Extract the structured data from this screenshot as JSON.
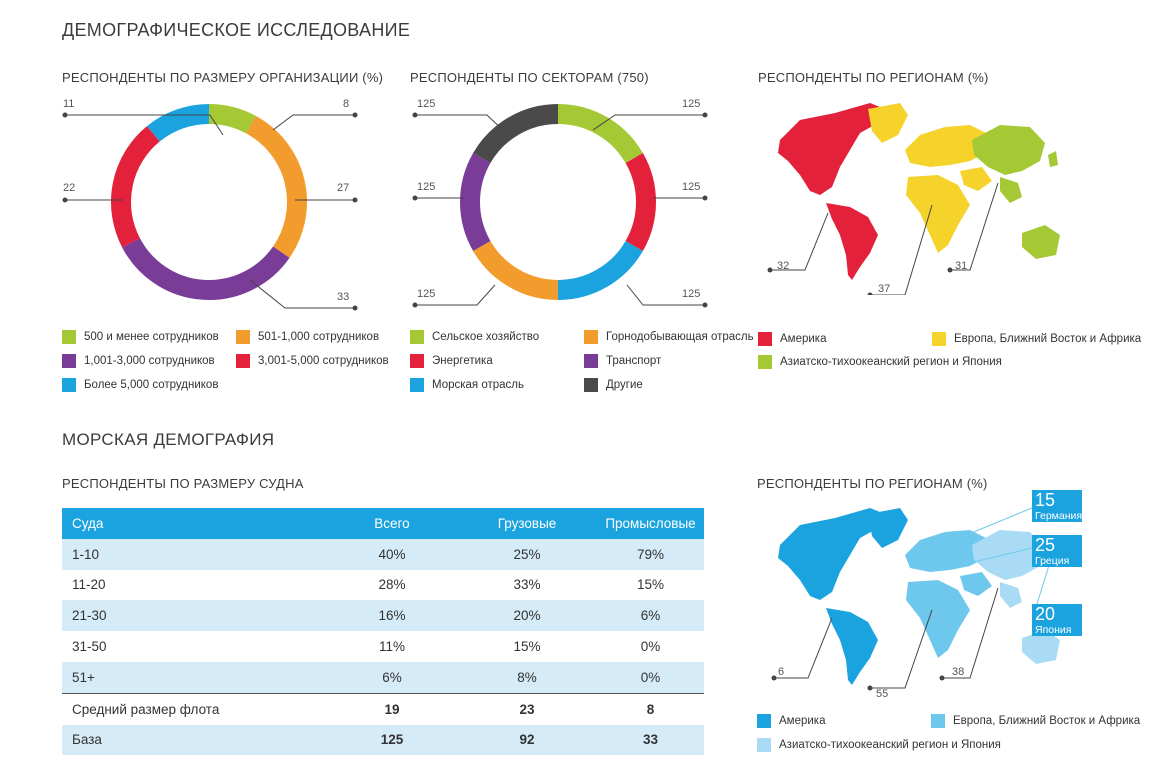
{
  "title": "ДЕМОГРАФИЧЕСКОЕ ИССЛЕДОВАНИЕ",
  "maritime_title": "МОРСКАЯ ДЕМОГРАФИЯ",
  "chart_data": [
    {
      "type": "pie",
      "title": "РЕСПОНДЕНТЫ ПО РАЗМЕРУ ОРГАНИЗАЦИИ (%)",
      "categories": [
        "500 и менее сотрудников",
        "501-1,000 сотрудников",
        "1,001-3,000 сотрудников",
        "3,001-5,000 сотрудников",
        "Более 5,000 сотрудников"
      ],
      "values": [
        8,
        27,
        33,
        22,
        11
      ],
      "colors": [
        "#a5c934",
        "#f39c2e",
        "#7a3d97",
        "#e4213b",
        "#1ba3df"
      ],
      "value_labels": [
        "8",
        "27",
        "33",
        "22",
        "11"
      ]
    },
    {
      "type": "pie",
      "title": "РЕСПОНДЕНТЫ ПО СЕКТОРАМ (750)",
      "categories": [
        "Сельское хозяйство",
        "Горнодобывающая отрасль",
        "Энергетика",
        "Транспорт",
        "Морская отрасль",
        "Другие"
      ],
      "values": [
        125,
        125,
        125,
        125,
        125,
        125
      ],
      "order": [
        0,
        2,
        4,
        1,
        3,
        5
      ],
      "colors": [
        "#a5c934",
        "#f39c2e",
        "#e4213b",
        "#7a3d97",
        "#1ba3df",
        "#4a4a4a"
      ],
      "value_labels": [
        "125",
        "125",
        "125",
        "125",
        "125",
        "125"
      ]
    },
    {
      "type": "map",
      "title": "РЕСПОНДЕНТЫ ПО РЕГИОНАМ (%)",
      "categories": [
        "Америка",
        "Европа, Ближний Восток и Африка",
        "Азиатско-тихоокеанский регион и Япония"
      ],
      "values": [
        32,
        37,
        31
      ],
      "colors": [
        "#e4213b",
        "#f5d32a",
        "#a5c934"
      ],
      "value_labels": [
        "32",
        "37",
        "31"
      ]
    },
    {
      "type": "table",
      "title": "РЕСПОНДЕНТЫ ПО РАЗМЕРУ СУДНА",
      "header": [
        "Суда",
        "Всего",
        "Грузовые",
        "Промысловые"
      ],
      "rows": [
        [
          "1-10",
          "40%",
          "25%",
          "79%"
        ],
        [
          "11-20",
          "28%",
          "33%",
          "15%"
        ],
        [
          "21-30",
          "16%",
          "20%",
          "6%"
        ],
        [
          "31-50",
          "11%",
          "15%",
          "0%"
        ],
        [
          "51+",
          "6%",
          "8%",
          "0%"
        ]
      ],
      "avg_row": [
        "Средний размер флота",
        "19",
        "23",
        "8"
      ],
      "base_row": [
        "База",
        "125",
        "92",
        "33"
      ]
    },
    {
      "type": "map",
      "title": "РЕСПОНДЕНТЫ ПО РЕГИОНАМ (%)",
      "categories": [
        "Америка",
        "Европа, Ближний Восток и Африка",
        "Азиатско-тихоокеанский регион и Япония"
      ],
      "values": [
        6,
        55,
        38
      ],
      "colors": [
        "#1ba3df",
        "#6ec8ee",
        "#a9dcf4"
      ],
      "value_labels": [
        "6",
        "55",
        "38"
      ],
      "callouts": [
        {
          "value": "15",
          "label": "Германия"
        },
        {
          "value": "25",
          "label": "Греция"
        },
        {
          "value": "20",
          "label": "Япония"
        }
      ]
    }
  ]
}
